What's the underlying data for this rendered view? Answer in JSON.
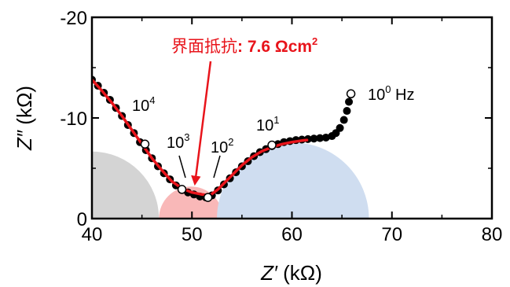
{
  "chart_data": {
    "type": "scatter",
    "xlabel_prefix": "Z′",
    "xlabel_unit": " (kΩ)",
    "ylabel_prefix": "Z″",
    "ylabel_unit": " (kΩ)",
    "xlim": [
      40,
      80
    ],
    "ylim": [
      0,
      -20
    ],
    "x_ticks": [
      "40",
      "50",
      "60",
      "70",
      "80"
    ],
    "y_ticks": [
      "0",
      "-10",
      "-20"
    ],
    "grid": false,
    "colors": {
      "measured": "#000000",
      "fit": "#e8141b",
      "semicircle_bulk": "#d4d4d4",
      "semicircle_interface": "#f9b8b8",
      "semicircle_electrode": "#cfddf0"
    },
    "semicircles": [
      {
        "role": "grey",
        "center": 40,
        "radius": 6.7
      },
      {
        "role": "pink",
        "center": 49.9,
        "radius": 3.2
      },
      {
        "role": "blue",
        "center": 60.1,
        "radius": 7.6
      }
    ],
    "series": [
      {
        "role": "measured",
        "x": [
          40.0,
          40.6,
          41.2,
          41.8,
          42.4,
          43.0,
          43.6,
          44.2,
          44.8,
          45.4,
          46.0,
          46.6,
          47.2,
          47.8,
          48.4,
          49.0,
          49.6,
          50.2,
          50.8,
          51.4,
          52.0,
          52.6,
          53.2,
          53.8,
          54.4,
          55.0,
          55.6,
          56.2,
          56.8,
          57.4,
          58.0,
          58.6,
          59.2,
          59.8,
          60.4,
          61.0,
          61.6,
          62.2,
          62.8,
          63.4,
          64.0,
          64.4,
          64.8,
          65.2,
          65.5,
          65.7,
          65.9
        ],
        "y": [
          -13.8,
          -13.2,
          -12.5,
          -11.8,
          -11.0,
          -10.2,
          -9.3,
          -8.5,
          -7.6,
          -6.8,
          -6.0,
          -5.2,
          -4.5,
          -3.9,
          -3.3,
          -2.9,
          -2.6,
          -2.4,
          -2.2,
          -2.1,
          -2.3,
          -2.8,
          -3.4,
          -4.0,
          -4.6,
          -5.2,
          -5.7,
          -6.2,
          -6.6,
          -6.9,
          -7.2,
          -7.4,
          -7.6,
          -7.7,
          -7.8,
          -7.85,
          -7.9,
          -7.95,
          -8.0,
          -8.05,
          -8.2,
          -8.5,
          -9.0,
          -9.8,
          -10.7,
          -11.6,
          -12.4
        ]
      },
      {
        "role": "fit",
        "x": [
          40.0,
          41.0,
          42.0,
          43.0,
          44.0,
          45.0,
          46.0,
          47.0,
          48.0,
          49.0,
          50.0,
          51.0,
          51.8,
          52.6,
          53.4,
          54.2,
          55.0,
          56.0,
          57.0,
          58.0,
          59.0,
          60.0,
          61.0,
          61.5
        ],
        "y": [
          -13.8,
          -12.7,
          -11.5,
          -10.2,
          -8.8,
          -7.4,
          -6.0,
          -4.8,
          -3.7,
          -3.0,
          -2.6,
          -2.4,
          -2.3,
          -2.9,
          -3.7,
          -4.5,
          -5.3,
          -6.1,
          -6.7,
          -7.1,
          -7.4,
          -7.6,
          -7.75,
          -7.8
        ]
      }
    ],
    "open_markers": [
      {
        "x": 45.3,
        "y": -7.4
      },
      {
        "x": 49.0,
        "y": -2.9
      },
      {
        "x": 51.6,
        "y": -2.1
      },
      {
        "x": 58.0,
        "y": -7.3
      },
      {
        "x": 65.9,
        "y": -12.4
      }
    ],
    "annotations": {
      "label_1e4": {
        "base": "10",
        "exp": "4",
        "suffix": ""
      },
      "label_1e3": {
        "base": "10",
        "exp": "3",
        "suffix": ""
      },
      "label_1e2": {
        "base": "10",
        "exp": "2",
        "suffix": ""
      },
      "label_1e1": {
        "base": "10",
        "exp": "1",
        "suffix": ""
      },
      "label_1e0": {
        "base": "10",
        "exp": "0",
        "suffix": " Hz"
      },
      "interface_resistance": {
        "text": "界面抵抗",
        "value": ": 7.6 Ωcm",
        "exp": "2",
        "at": {
          "x": 50.3,
          "y": -3.0
        }
      }
    }
  }
}
